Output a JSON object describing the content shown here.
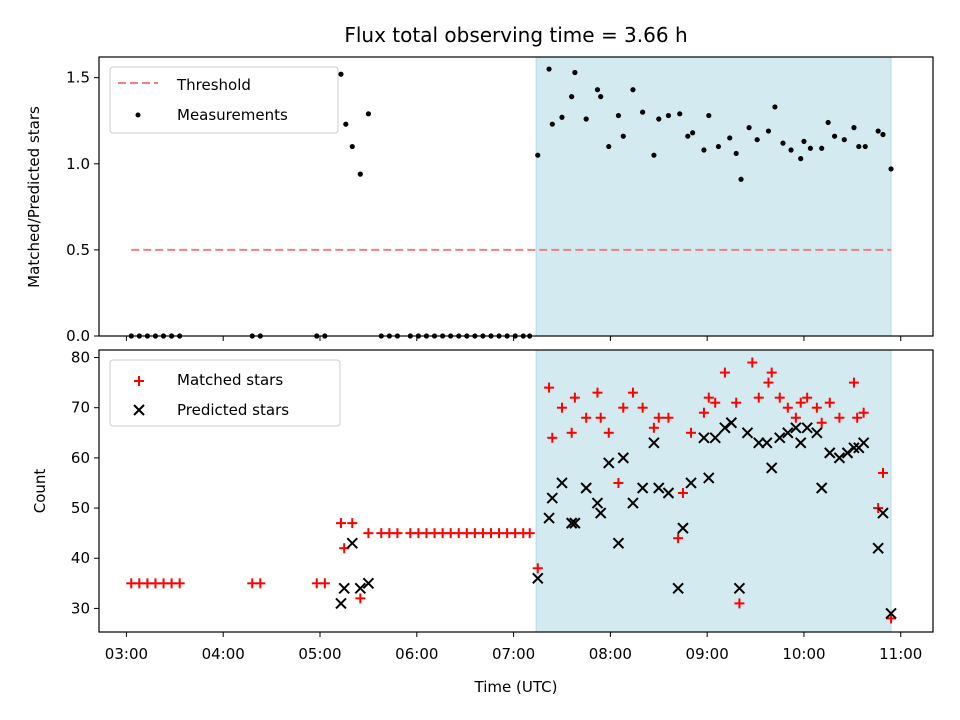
{
  "chart_data": [
    {
      "type": "scatter",
      "title": "Flux total observing time = 3.66 h",
      "xlabel": "",
      "ylabel": "Matched/Predicted stars",
      "xlim": [
        "02:43",
        "11:20"
      ],
      "ylim": [
        0,
        1.62
      ],
      "yticks": [
        "0.0",
        "0.5",
        "1.0",
        "1.5"
      ],
      "shaded_region": {
        "x_start": "07:14",
        "x_end": "10:54",
        "color": "#d3ebf0"
      },
      "legend_position": "top-left",
      "threshold": {
        "name": "Threshold",
        "value": 0.5,
        "x_start": "03:03",
        "x_end": "10:54",
        "color": "#f08080",
        "style": "dashed"
      },
      "series": [
        {
          "name": "Measurements",
          "color": "#000000",
          "marker": "dot",
          "points": [
            [
              "03:03",
              0
            ],
            [
              "03:08",
              0
            ],
            [
              "03:13",
              0
            ],
            [
              "03:18",
              0
            ],
            [
              "03:23",
              0
            ],
            [
              "03:28",
              0
            ],
            [
              "03:33",
              0
            ],
            [
              "04:18",
              0
            ],
            [
              "04:23",
              0
            ],
            [
              "04:58",
              0
            ],
            [
              "05:03",
              0
            ],
            [
              "05:13",
              1.52
            ],
            [
              "05:16",
              1.23
            ],
            [
              "05:20",
              1.1
            ],
            [
              "05:25",
              0.94
            ],
            [
              "05:30",
              1.29
            ],
            [
              "05:38",
              0
            ],
            [
              "05:43",
              0
            ],
            [
              "05:48",
              0
            ],
            [
              "05:56",
              0
            ],
            [
              "06:01",
              0
            ],
            [
              "06:06",
              0
            ],
            [
              "06:11",
              0
            ],
            [
              "06:16",
              0
            ],
            [
              "06:21",
              0
            ],
            [
              "06:26",
              0
            ],
            [
              "06:31",
              0
            ],
            [
              "06:36",
              0
            ],
            [
              "06:41",
              0
            ],
            [
              "06:46",
              0
            ],
            [
              "06:51",
              0
            ],
            [
              "06:56",
              0
            ],
            [
              "07:01",
              0
            ],
            [
              "07:06",
              0
            ],
            [
              "07:10",
              0
            ],
            [
              "07:15",
              1.05
            ],
            [
              "07:22",
              1.55
            ],
            [
              "07:24",
              1.23
            ],
            [
              "07:30",
              1.27
            ],
            [
              "07:36",
              1.39
            ],
            [
              "07:38",
              1.53
            ],
            [
              "07:45",
              1.26
            ],
            [
              "07:52",
              1.43
            ],
            [
              "07:54",
              1.39
            ],
            [
              "07:59",
              1.1
            ],
            [
              "08:05",
              1.28
            ],
            [
              "08:08",
              1.16
            ],
            [
              "08:14",
              1.43
            ],
            [
              "08:20",
              1.3
            ],
            [
              "08:27",
              1.05
            ],
            [
              "08:30",
              1.26
            ],
            [
              "08:36",
              1.28
            ],
            [
              "08:43",
              1.29
            ],
            [
              "08:48",
              1.16
            ],
            [
              "08:51",
              1.18
            ],
            [
              "08:58",
              1.08
            ],
            [
              "09:01",
              1.28
            ],
            [
              "09:07",
              1.1
            ],
            [
              "09:14",
              1.15
            ],
            [
              "09:18",
              1.06
            ],
            [
              "09:21",
              0.91
            ],
            [
              "09:26",
              1.21
            ],
            [
              "09:31",
              1.14
            ],
            [
              "09:38",
              1.19
            ],
            [
              "09:42",
              1.33
            ],
            [
              "09:47",
              1.12
            ],
            [
              "09:52",
              1.08
            ],
            [
              "09:58",
              1.03
            ],
            [
              "10:00",
              1.13
            ],
            [
              "10:04",
              1.09
            ],
            [
              "10:11",
              1.09
            ],
            [
              "10:15",
              1.24
            ],
            [
              "10:19",
              1.16
            ],
            [
              "10:25",
              1.14
            ],
            [
              "10:31",
              1.21
            ],
            [
              "10:34",
              1.1
            ],
            [
              "10:38",
              1.1
            ],
            [
              "10:46",
              1.19
            ],
            [
              "10:49",
              1.17
            ],
            [
              "10:54",
              0.97
            ]
          ]
        }
      ]
    },
    {
      "type": "scatter",
      "title": "",
      "xlabel": "Time (UTC)",
      "ylabel": "Count",
      "xlim": [
        "02:43",
        "11:20"
      ],
      "ylim": [
        25.3,
        81.5
      ],
      "xticks": [
        "03:00",
        "04:00",
        "05:00",
        "06:00",
        "07:00",
        "08:00",
        "09:00",
        "10:00",
        "11:00"
      ],
      "yticks": [
        "30",
        "40",
        "50",
        "60",
        "70",
        "80"
      ],
      "shaded_region": {
        "x_start": "07:14",
        "x_end": "10:54",
        "color": "#d3ebf0"
      },
      "legend_position": "top-left",
      "series": [
        {
          "name": "Matched stars",
          "color": "#ff0000",
          "marker": "plus",
          "points": [
            [
              "03:03",
              35
            ],
            [
              "03:08",
              35
            ],
            [
              "03:13",
              35
            ],
            [
              "03:18",
              35
            ],
            [
              "03:23",
              35
            ],
            [
              "03:28",
              35
            ],
            [
              "03:33",
              35
            ],
            [
              "04:18",
              35
            ],
            [
              "04:23",
              35
            ],
            [
              "04:58",
              35
            ],
            [
              "05:03",
              35
            ],
            [
              "05:13",
              47
            ],
            [
              "05:15",
              42
            ],
            [
              "05:20",
              47
            ],
            [
              "05:25",
              32
            ],
            [
              "05:30",
              45
            ],
            [
              "05:38",
              45
            ],
            [
              "05:43",
              45
            ],
            [
              "05:48",
              45
            ],
            [
              "05:56",
              45
            ],
            [
              "06:01",
              45
            ],
            [
              "06:06",
              45
            ],
            [
              "06:11",
              45
            ],
            [
              "06:16",
              45
            ],
            [
              "06:21",
              45
            ],
            [
              "06:26",
              45
            ],
            [
              "06:31",
              45
            ],
            [
              "06:36",
              45
            ],
            [
              "06:41",
              45
            ],
            [
              "06:46",
              45
            ],
            [
              "06:51",
              45
            ],
            [
              "06:56",
              45
            ],
            [
              "07:01",
              45
            ],
            [
              "07:06",
              45
            ],
            [
              "07:10",
              45
            ],
            [
              "07:15",
              38
            ],
            [
              "07:22",
              74
            ],
            [
              "07:24",
              64
            ],
            [
              "07:30",
              70
            ],
            [
              "07:36",
              65
            ],
            [
              "07:38",
              72
            ],
            [
              "07:45",
              68
            ],
            [
              "07:52",
              73
            ],
            [
              "07:54",
              68
            ],
            [
              "07:59",
              65
            ],
            [
              "08:05",
              55
            ],
            [
              "08:08",
              70
            ],
            [
              "08:14",
              73
            ],
            [
              "08:20",
              70
            ],
            [
              "08:27",
              66
            ],
            [
              "08:30",
              68
            ],
            [
              "08:36",
              68
            ],
            [
              "08:42",
              44
            ],
            [
              "08:45",
              53
            ],
            [
              "08:50",
              65
            ],
            [
              "08:58",
              69
            ],
            [
              "09:01",
              72
            ],
            [
              "09:05",
              71
            ],
            [
              "09:11",
              77
            ],
            [
              "09:18",
              71
            ],
            [
              "09:20",
              31
            ],
            [
              "09:28",
              79
            ],
            [
              "09:32",
              72
            ],
            [
              "09:38",
              75
            ],
            [
              "09:40",
              77
            ],
            [
              "09:45",
              72
            ],
            [
              "09:50",
              70
            ],
            [
              "09:55",
              68
            ],
            [
              "09:58",
              71
            ],
            [
              "10:02",
              72
            ],
            [
              "10:08",
              70
            ],
            [
              "10:11",
              67
            ],
            [
              "10:16",
              71
            ],
            [
              "10:22",
              68
            ],
            [
              "10:31",
              75
            ],
            [
              "10:33",
              68
            ],
            [
              "10:37",
              69
            ],
            [
              "10:46",
              50
            ],
            [
              "10:49",
              57
            ],
            [
              "10:54",
              28
            ]
          ]
        },
        {
          "name": "Predicted stars",
          "color": "#000000",
          "marker": "x",
          "points": [
            [
              "05:13",
              31
            ],
            [
              "05:15",
              34
            ],
            [
              "05:20",
              43
            ],
            [
              "05:25",
              34
            ],
            [
              "05:30",
              35
            ],
            [
              "07:15",
              36
            ],
            [
              "07:22",
              48
            ],
            [
              "07:24",
              52
            ],
            [
              "07:30",
              55
            ],
            [
              "07:36",
              47
            ],
            [
              "07:38",
              47
            ],
            [
              "07:45",
              54
            ],
            [
              "07:52",
              51
            ],
            [
              "07:54",
              49
            ],
            [
              "07:59",
              59
            ],
            [
              "08:05",
              43
            ],
            [
              "08:08",
              60
            ],
            [
              "08:14",
              51
            ],
            [
              "08:20",
              54
            ],
            [
              "08:27",
              63
            ],
            [
              "08:30",
              54
            ],
            [
              "08:36",
              53
            ],
            [
              "08:42",
              34
            ],
            [
              "08:45",
              46
            ],
            [
              "08:50",
              55
            ],
            [
              "08:58",
              64
            ],
            [
              "09:01",
              56
            ],
            [
              "09:05",
              64
            ],
            [
              "09:11",
              66
            ],
            [
              "09:15",
              67
            ],
            [
              "09:20",
              34
            ],
            [
              "09:25",
              65
            ],
            [
              "09:32",
              63
            ],
            [
              "09:37",
              63
            ],
            [
              "09:40",
              58
            ],
            [
              "09:45",
              64
            ],
            [
              "09:50",
              65
            ],
            [
              "09:55",
              66
            ],
            [
              "09:58",
              63
            ],
            [
              "10:02",
              66
            ],
            [
              "10:08",
              65
            ],
            [
              "10:11",
              54
            ],
            [
              "10:16",
              61
            ],
            [
              "10:22",
              60
            ],
            [
              "10:27",
              61
            ],
            [
              "10:31",
              62
            ],
            [
              "10:34",
              62
            ],
            [
              "10:37",
              63
            ],
            [
              "10:46",
              42
            ],
            [
              "10:49",
              49
            ],
            [
              "10:54",
              29
            ]
          ]
        }
      ]
    }
  ]
}
